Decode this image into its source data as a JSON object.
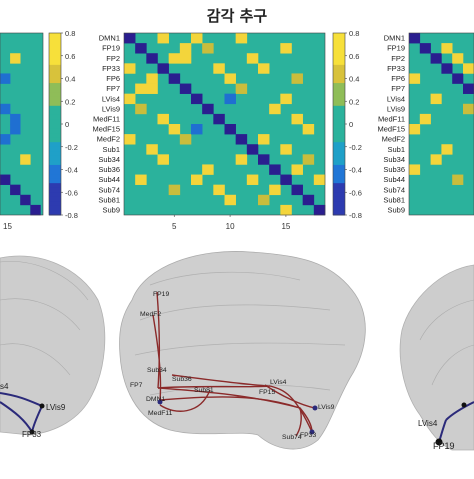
{
  "title": "감각 추구",
  "colors": {
    "bg": "#2bb29c",
    "low": "#2a1e8f",
    "mid_low": "#1f6fd1",
    "mid": "#2bb29c",
    "mid_high": "#c9bd3c",
    "high": "#f3d53b",
    "brain": "#bdbdbd",
    "pos_edge": "#8b2a2a",
    "neg_edge": "#2b2a7a"
  },
  "colorbar": {
    "ticks": [
      "0.8",
      "0.6",
      "0.4",
      "0.2",
      "0",
      "-0.2",
      "-0.4",
      "-0.6",
      "-0.8"
    ]
  },
  "matrix_labels": [
    "DMN1",
    "FP19",
    "FP2",
    "FP33",
    "FP6",
    "FP7",
    "LVis4",
    "LVis9",
    "MedF11",
    "MedF15",
    "MedF2",
    "Sub1",
    "Sub34",
    "Sub36",
    "Sub44",
    "Sub74",
    "Sub81",
    "Sub9"
  ],
  "center_x_ticks": [
    "5",
    "10",
    "15"
  ],
  "left_x_ticks": [
    "15"
  ],
  "center_brain_labels": [
    "FP19",
    "MedF2",
    "Sub34",
    "Sub36",
    "FP7",
    "Sub81",
    "LVis4",
    "DMN1",
    "MedF11",
    "FP15",
    "LVis9",
    "Sub74",
    "FP33"
  ],
  "left_brain_labels": [
    "s4",
    "LVis9",
    "FP33"
  ],
  "right_brain_labels": [
    "LVis4",
    "FP19"
  ]
}
